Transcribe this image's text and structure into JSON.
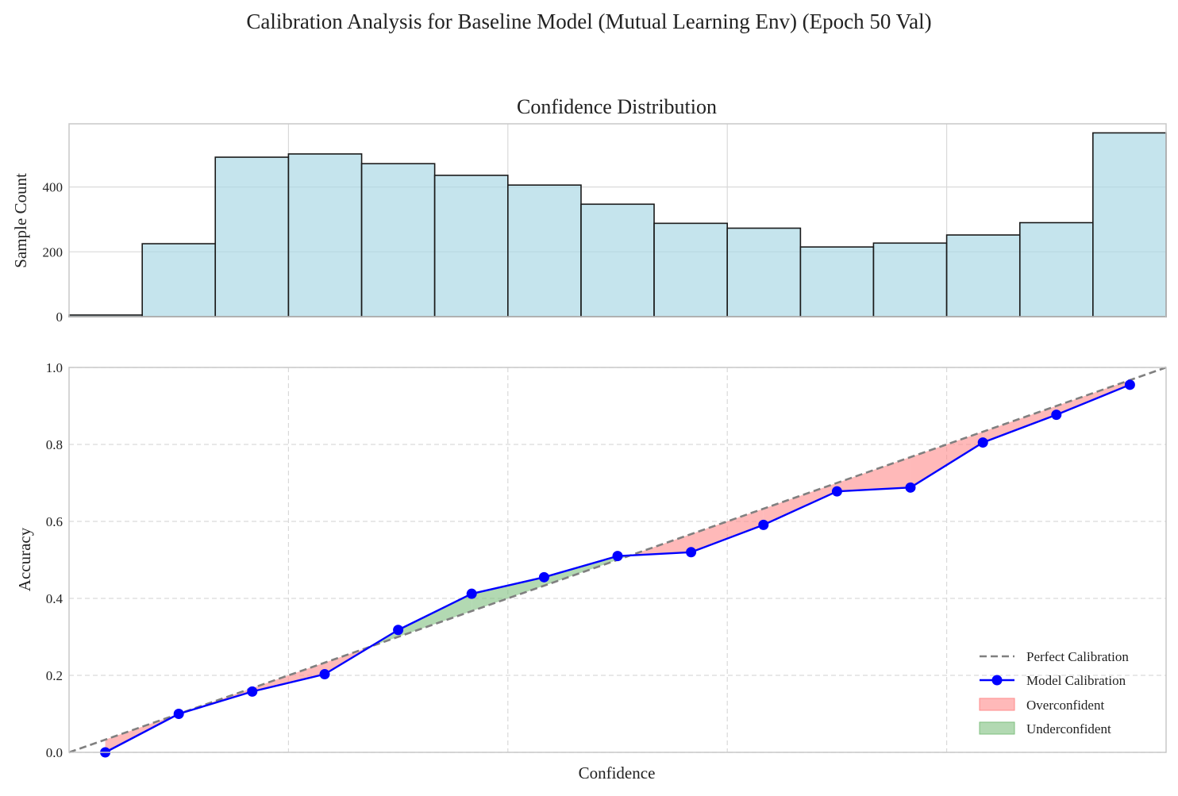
{
  "colors": {
    "hist_fill": "#add8e6",
    "hist_edge": "#1a1a1a",
    "calib_line": "#0000ff",
    "perfect_line": "#808080",
    "over_fill": "#ff8a8a",
    "under_fill": "#7fbf7f",
    "grid": "#d9d9d9",
    "spine": "#c8c8c8"
  },
  "chart_data": {
    "suptitle": "Calibration Analysis for Baseline Model (Mutual Learning Env) (Epoch 50 Val)",
    "histogram": {
      "type": "bar",
      "title": "Confidence Distribution",
      "ylabel": "Sample Count",
      "bin_edges": [
        0.0,
        0.0667,
        0.1333,
        0.2,
        0.2667,
        0.3333,
        0.4,
        0.4667,
        0.5333,
        0.6,
        0.6667,
        0.7333,
        0.8,
        0.8667,
        0.9333,
        1.0
      ],
      "counts": [
        5,
        225,
        492,
        502,
        472,
        436,
        406,
        347,
        288,
        273,
        215,
        227,
        252,
        290,
        567
      ],
      "xlim": [
        0,
        1
      ],
      "ylim": [
        0,
        595
      ],
      "yticks": [
        0,
        200,
        400
      ]
    },
    "reliability": {
      "type": "line",
      "xlabel": "Confidence",
      "ylabel": "Accuracy",
      "xlim": [
        0,
        1
      ],
      "ylim": [
        0,
        1
      ],
      "yticks": [
        "0.0",
        "0.2",
        "0.4",
        "0.6",
        "0.8",
        "1.0"
      ],
      "xgrid": [
        0.2,
        0.4,
        0.6,
        0.8
      ],
      "bin_confidence": [
        0.0333,
        0.1,
        0.1667,
        0.2333,
        0.3,
        0.3667,
        0.4333,
        0.5,
        0.5667,
        0.6333,
        0.7,
        0.7667,
        0.8333,
        0.9,
        0.9667
      ],
      "accuracy": [
        0.0,
        0.1,
        0.158,
        0.203,
        0.318,
        0.412,
        0.455,
        0.51,
        0.52,
        0.591,
        0.678,
        0.688,
        0.805,
        0.877,
        0.955
      ],
      "points_x": [
        0.033,
        0.1,
        0.167,
        0.233,
        0.3,
        0.367,
        0.433,
        0.5,
        0.567,
        0.633,
        0.7,
        0.767,
        0.833,
        0.9,
        0.967
      ],
      "legend_position": "lower-right",
      "legend": {
        "perfect": "Perfect Calibration",
        "model": "Model Calibration",
        "over": "Overconfident",
        "under": "Underconfident"
      }
    }
  }
}
